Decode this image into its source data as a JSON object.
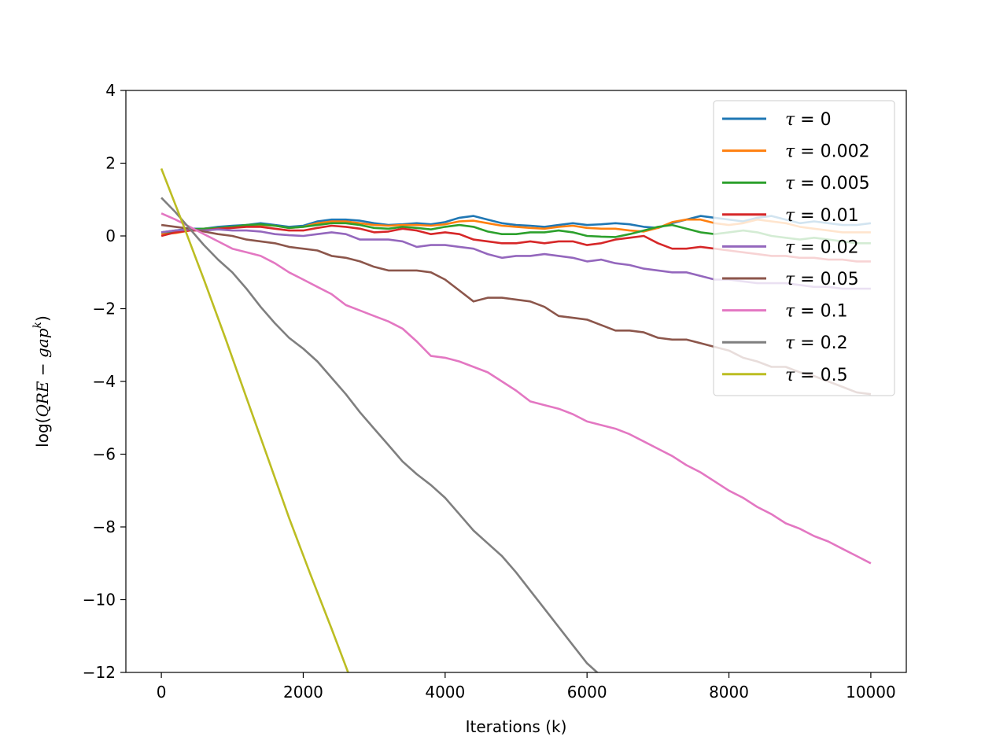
{
  "chart_data": {
    "type": "line",
    "xlabel": "Iterations (k)",
    "ylabel": "log(QRE − gap^k)",
    "xlim": [
      -500,
      10500
    ],
    "ylim": [
      -12,
      4
    ],
    "xticks": [
      0,
      2000,
      4000,
      6000,
      8000,
      10000
    ],
    "yticks": [
      4,
      2,
      0,
      -2,
      -4,
      -6,
      -8,
      -10,
      -12
    ],
    "xtick_labels": [
      "0",
      "2000",
      "4000",
      "6000",
      "8000",
      "10000"
    ],
    "ytick_labels": [
      "4",
      "2",
      "0",
      "−2",
      "−4",
      "−6",
      "−8",
      "−10",
      "−12"
    ],
    "grid": false,
    "legend_position": "top-right",
    "series": [
      {
        "name": "0",
        "color": "#1f77b4",
        "x": [
          0,
          200,
          400,
          600,
          800,
          1000,
          1200,
          1400,
          1600,
          1800,
          2000,
          2200,
          2400,
          2600,
          2800,
          3000,
          3200,
          3400,
          3600,
          3800,
          4000,
          4200,
          4400,
          4600,
          4800,
          5000,
          5200,
          5400,
          5600,
          5800,
          6000,
          6200,
          6400,
          6600,
          6800,
          7000,
          7200,
          7400,
          7600,
          7800,
          8000,
          8200,
          8400,
          8600,
          8800,
          9000,
          9200,
          9400,
          9600,
          9800,
          10000
        ],
        "y": [
          0.1,
          0.15,
          0.2,
          0.2,
          0.25,
          0.28,
          0.3,
          0.35,
          0.3,
          0.25,
          0.28,
          0.4,
          0.45,
          0.45,
          0.42,
          0.35,
          0.3,
          0.32,
          0.35,
          0.32,
          0.38,
          0.5,
          0.55,
          0.45,
          0.35,
          0.3,
          0.28,
          0.25,
          0.3,
          0.35,
          0.3,
          0.32,
          0.35,
          0.32,
          0.25,
          0.22,
          0.35,
          0.45,
          0.55,
          0.5,
          0.45,
          0.4,
          0.5,
          0.55,
          0.45,
          0.35,
          0.4,
          0.35,
          0.3,
          0.3,
          0.35
        ]
      },
      {
        "name": "0.002",
        "color": "#ff7f0e",
        "x": [
          0,
          200,
          400,
          600,
          800,
          1000,
          1200,
          1400,
          1600,
          1800,
          2000,
          2200,
          2400,
          2600,
          2800,
          3000,
          3200,
          3400,
          3600,
          3800,
          4000,
          4200,
          4400,
          4600,
          4800,
          5000,
          5200,
          5400,
          5600,
          5800,
          6000,
          6200,
          6400,
          6600,
          6800,
          7000,
          7200,
          7400,
          7600,
          7800,
          8000,
          8200,
          8400,
          8600,
          8800,
          9000,
          9200,
          9400,
          9600,
          9800,
          10000
        ],
        "y": [
          0.05,
          0.08,
          0.15,
          0.2,
          0.22,
          0.25,
          0.28,
          0.3,
          0.28,
          0.22,
          0.25,
          0.35,
          0.4,
          0.4,
          0.35,
          0.3,
          0.28,
          0.3,
          0.3,
          0.28,
          0.32,
          0.4,
          0.42,
          0.35,
          0.28,
          0.25,
          0.22,
          0.2,
          0.25,
          0.28,
          0.22,
          0.2,
          0.2,
          0.15,
          0.12,
          0.22,
          0.38,
          0.45,
          0.45,
          0.35,
          0.3,
          0.35,
          0.45,
          0.4,
          0.35,
          0.25,
          0.2,
          0.15,
          0.1,
          0.1,
          0.1
        ]
      },
      {
        "name": "0.005",
        "color": "#2ca02c",
        "x": [
          0,
          200,
          400,
          600,
          800,
          1000,
          1200,
          1400,
          1600,
          1800,
          2000,
          2200,
          2400,
          2600,
          2800,
          3000,
          3200,
          3400,
          3600,
          3800,
          4000,
          4200,
          4400,
          4600,
          4800,
          5000,
          5200,
          5400,
          5600,
          5800,
          6000,
          6200,
          6400,
          6600,
          6800,
          7000,
          7200,
          7400,
          7600,
          7800,
          8000,
          8200,
          8400,
          8600,
          8800,
          9000,
          9200,
          9400,
          9600,
          9800,
          10000
        ],
        "y": [
          0.1,
          0.12,
          0.18,
          0.2,
          0.22,
          0.25,
          0.3,
          0.32,
          0.28,
          0.22,
          0.25,
          0.3,
          0.35,
          0.35,
          0.3,
          0.22,
          0.2,
          0.25,
          0.22,
          0.18,
          0.25,
          0.3,
          0.25,
          0.12,
          0.05,
          0.05,
          0.1,
          0.1,
          0.15,
          0.1,
          0.0,
          -0.02,
          -0.03,
          0.05,
          0.15,
          0.25,
          0.3,
          0.2,
          0.1,
          0.05,
          0.1,
          0.15,
          0.1,
          0.0,
          -0.05,
          -0.1,
          -0.05,
          -0.1,
          -0.15,
          -0.2,
          -0.2
        ]
      },
      {
        "name": "0.01",
        "color": "#d62728",
        "x": [
          0,
          200,
          400,
          600,
          800,
          1000,
          1200,
          1400,
          1600,
          1800,
          2000,
          2200,
          2400,
          2600,
          2800,
          3000,
          3200,
          3400,
          3600,
          3800,
          4000,
          4200,
          4400,
          4600,
          4800,
          5000,
          5200,
          5400,
          5600,
          5800,
          6000,
          6200,
          6400,
          6600,
          6800,
          7000,
          7200,
          7400,
          7600,
          7800,
          8000,
          8200,
          8400,
          8600,
          8800,
          9000,
          9200,
          9400,
          9600,
          9800,
          10000
        ],
        "y": [
          0.0,
          0.1,
          0.15,
          0.15,
          0.2,
          0.22,
          0.25,
          0.25,
          0.2,
          0.15,
          0.15,
          0.22,
          0.28,
          0.25,
          0.2,
          0.1,
          0.12,
          0.2,
          0.15,
          0.05,
          0.1,
          0.05,
          -0.1,
          -0.15,
          -0.2,
          -0.2,
          -0.15,
          -0.2,
          -0.15,
          -0.15,
          -0.25,
          -0.2,
          -0.1,
          -0.05,
          0.0,
          -0.2,
          -0.35,
          -0.35,
          -0.3,
          -0.35,
          -0.4,
          -0.45,
          -0.5,
          -0.55,
          -0.55,
          -0.6,
          -0.6,
          -0.65,
          -0.65,
          -0.7,
          -0.7
        ]
      },
      {
        "name": "0.02",
        "color": "#9467bd",
        "x": [
          0,
          200,
          400,
          600,
          800,
          1000,
          1200,
          1400,
          1600,
          1800,
          2000,
          2200,
          2400,
          2600,
          2800,
          3000,
          3200,
          3400,
          3600,
          3800,
          4000,
          4200,
          4400,
          4600,
          4800,
          5000,
          5200,
          5400,
          5600,
          5800,
          6000,
          6200,
          6400,
          6600,
          6800,
          7000,
          7200,
          7400,
          7600,
          7800,
          8000,
          8200,
          8400,
          8600,
          8800,
          9000,
          9200,
          9400,
          9600,
          9800,
          10000
        ],
        "y": [
          0.1,
          0.15,
          0.18,
          0.15,
          0.18,
          0.15,
          0.15,
          0.12,
          0.05,
          0.02,
          0.0,
          0.05,
          0.1,
          0.05,
          -0.1,
          -0.1,
          -0.1,
          -0.15,
          -0.3,
          -0.25,
          -0.25,
          -0.3,
          -0.35,
          -0.5,
          -0.6,
          -0.55,
          -0.55,
          -0.5,
          -0.55,
          -0.6,
          -0.7,
          -0.65,
          -0.75,
          -0.8,
          -0.9,
          -0.95,
          -1.0,
          -1.0,
          -1.1,
          -1.2,
          -1.2,
          -1.25,
          -1.3,
          -1.3,
          -1.3,
          -1.35,
          -1.4,
          -1.4,
          -1.45,
          -1.45,
          -1.45
        ]
      },
      {
        "name": "0.05",
        "color": "#8c564b",
        "x": [
          0,
          200,
          400,
          600,
          800,
          1000,
          1200,
          1400,
          1600,
          1800,
          2000,
          2200,
          2400,
          2600,
          2800,
          3000,
          3200,
          3400,
          3600,
          3800,
          4000,
          4200,
          4400,
          4600,
          4800,
          5000,
          5200,
          5400,
          5600,
          5800,
          6000,
          6200,
          6400,
          6600,
          6800,
          7000,
          7200,
          7400,
          7600,
          7800,
          8000,
          8200,
          8400,
          8600,
          8800,
          9000,
          9200,
          9400,
          9600,
          9800,
          10000
        ],
        "y": [
          0.3,
          0.25,
          0.2,
          0.12,
          0.05,
          0.0,
          -0.1,
          -0.15,
          -0.2,
          -0.3,
          -0.35,
          -0.4,
          -0.55,
          -0.6,
          -0.7,
          -0.85,
          -0.95,
          -0.95,
          -0.95,
          -1.0,
          -1.2,
          -1.5,
          -1.8,
          -1.7,
          -1.7,
          -1.75,
          -1.8,
          -1.95,
          -2.2,
          -2.25,
          -2.3,
          -2.45,
          -2.6,
          -2.6,
          -2.65,
          -2.8,
          -2.85,
          -2.85,
          -2.95,
          -3.05,
          -3.15,
          -3.35,
          -3.45,
          -3.6,
          -3.6,
          -3.75,
          -3.85,
          -4.0,
          -4.15,
          -4.3,
          -4.35
        ]
      },
      {
        "name": "0.1",
        "color": "#e377c2",
        "x": [
          0,
          200,
          400,
          600,
          800,
          1000,
          1200,
          1400,
          1600,
          1800,
          2000,
          2200,
          2400,
          2600,
          2800,
          3000,
          3200,
          3400,
          3600,
          3800,
          4000,
          4200,
          4400,
          4600,
          4800,
          5000,
          5200,
          5400,
          5600,
          5800,
          6000,
          6200,
          6400,
          6600,
          6800,
          7000,
          7200,
          7400,
          7600,
          7800,
          8000,
          8200,
          8400,
          8600,
          8800,
          9000,
          9200,
          9400,
          9600,
          9800,
          10000
        ],
        "y": [
          0.62,
          0.45,
          0.25,
          0.05,
          -0.15,
          -0.35,
          -0.45,
          -0.55,
          -0.75,
          -1.0,
          -1.2,
          -1.4,
          -1.6,
          -1.9,
          -2.05,
          -2.2,
          -2.35,
          -2.55,
          -2.9,
          -3.3,
          -3.35,
          -3.45,
          -3.6,
          -3.75,
          -4.0,
          -4.25,
          -4.55,
          -4.65,
          -4.75,
          -4.9,
          -5.1,
          -5.2,
          -5.3,
          -5.45,
          -5.65,
          -5.85,
          -6.05,
          -6.3,
          -6.5,
          -6.75,
          -7.0,
          -7.2,
          -7.45,
          -7.65,
          -7.9,
          -8.05,
          -8.25,
          -8.4,
          -8.6,
          -8.8,
          -9.0
        ]
      },
      {
        "name": "0.2",
        "color": "#7f7f7f",
        "x": [
          0,
          200,
          400,
          600,
          800,
          1000,
          1200,
          1400,
          1600,
          1800,
          2000,
          2200,
          2400,
          2600,
          2800,
          3000,
          3200,
          3400,
          3600,
          3800,
          4000,
          4200,
          4400,
          4600,
          4800,
          5000,
          5200,
          5400,
          5600,
          5800,
          6000,
          6200,
          6400,
          6450
        ],
        "y": [
          1.05,
          0.65,
          0.2,
          -0.25,
          -0.65,
          -1.0,
          -1.45,
          -1.95,
          -2.4,
          -2.8,
          -3.1,
          -3.45,
          -3.9,
          -4.35,
          -4.85,
          -5.3,
          -5.75,
          -6.2,
          -6.55,
          -6.85,
          -7.2,
          -7.65,
          -8.1,
          -8.45,
          -8.8,
          -9.25,
          -9.75,
          -10.25,
          -10.75,
          -11.25,
          -11.75,
          -12.1,
          -12.5,
          -12.6
        ]
      },
      {
        "name": "0.5",
        "color": "#bcbd22",
        "x": [
          0,
          300,
          600,
          900,
          1200,
          1500,
          1800,
          2100,
          2400,
          2700,
          2720
        ],
        "y": [
          1.85,
          0.35,
          -1.2,
          -2.8,
          -4.45,
          -6.1,
          -7.75,
          -9.3,
          -10.8,
          -12.35,
          -12.45
        ]
      }
    ]
  }
}
